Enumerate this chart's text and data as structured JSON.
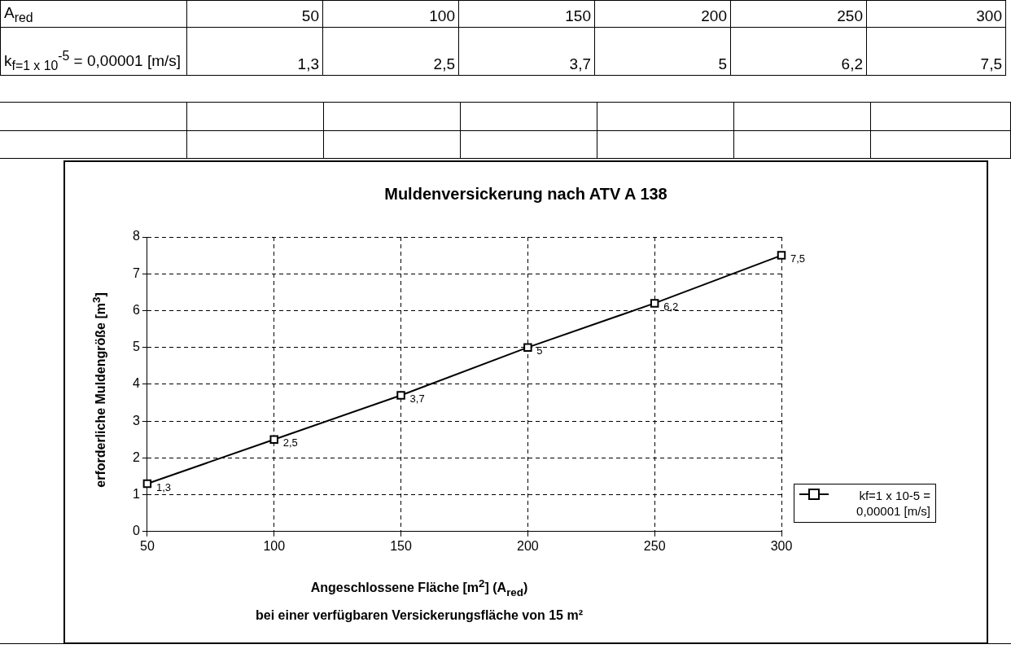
{
  "chart_data": {
    "type": "line",
    "title": "Muldenversickerung nach ATV A 138",
    "xlabel": "Angeschlossene Fläche [m$^{2}$] (A$_{red}$)",
    "ylabel": "erforderliche Muldengröße [m$^{3}$]",
    "annotations": [
      "bei einer verfügbaren Versickerungsfläche von 15 m²",
      "A$_{red}$",
      "k$_{f=1 x 10}$$^{-5}$ = 0,00001 [m/s]",
      "50",
      "100",
      "150",
      "200",
      "250",
      "300"
    ],
    "x": [
      50,
      100,
      150,
      200,
      250,
      300
    ],
    "series": [
      {
        "name": "kf=1 x 10-5 = 0,00001 [m/s]",
        "color": "#000000",
        "values": [
          1.3,
          2.5,
          3.7,
          5,
          6.2,
          7.5
        ],
        "value_labels": [
          "1,3",
          "2,5",
          "3,7",
          "5",
          "6,2",
          "7,5"
        ]
      }
    ],
    "xlim": [
      50,
      300
    ],
    "xticks": [
      50,
      100,
      150,
      200,
      250,
      300
    ],
    "ylim": [
      0,
      8
    ],
    "yticks": [
      0,
      1,
      2,
      3,
      4,
      5,
      6,
      7,
      8
    ],
    "grid": true,
    "legend": "right",
    "marker": "square",
    "line_style": "solid"
  }
}
